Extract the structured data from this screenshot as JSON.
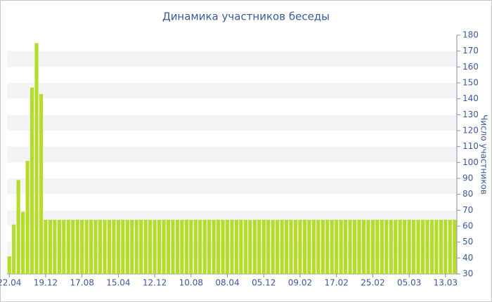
{
  "chart_data": {
    "type": "bar",
    "title": "Динамика участников беседы",
    "y_axis_label": "Число участников",
    "categories": [
      "22.04",
      null,
      null,
      null,
      null,
      null,
      null,
      null,
      "19.12",
      null,
      null,
      null,
      null,
      null,
      null,
      null,
      "17.08",
      null,
      null,
      null,
      null,
      null,
      null,
      null,
      "15.04",
      null,
      null,
      null,
      null,
      null,
      null,
      null,
      "12.12",
      null,
      null,
      null,
      null,
      null,
      null,
      null,
      "10.08",
      null,
      null,
      null,
      null,
      null,
      null,
      null,
      "08.04",
      null,
      null,
      null,
      null,
      null,
      null,
      null,
      "05.12",
      null,
      null,
      null,
      null,
      null,
      null,
      null,
      "09.02",
      null,
      null,
      null,
      null,
      null,
      null,
      null,
      "17.02",
      null,
      null,
      null,
      null,
      null,
      null,
      null,
      "25.02",
      null,
      null,
      null,
      null,
      null,
      null,
      null,
      "05.03",
      null,
      null,
      null,
      null,
      null,
      null,
      null,
      "13.03",
      null,
      null
    ],
    "values": [
      41,
      61,
      89,
      69,
      101,
      147,
      175,
      143,
      64,
      64,
      64,
      64,
      64,
      64,
      64,
      64,
      64,
      64,
      64,
      64,
      64,
      64,
      64,
      64,
      64,
      64,
      64,
      64,
      64,
      64,
      64,
      64,
      64,
      64,
      64,
      64,
      64,
      64,
      64,
      64,
      64,
      64,
      64,
      64,
      64,
      64,
      64,
      64,
      64,
      64,
      64,
      64,
      64,
      64,
      64,
      64,
      64,
      64,
      64,
      64,
      64,
      64,
      64,
      64,
      64,
      64,
      64,
      64,
      64,
      64,
      64,
      64,
      64,
      64,
      64,
      64,
      64,
      64,
      64,
      64,
      64,
      64,
      64,
      64,
      64,
      64,
      64,
      64,
      64,
      64,
      64,
      64,
      64,
      64,
      64,
      64,
      64,
      64,
      64
    ],
    "color": "#b5dc2b",
    "ylim": [
      30,
      180
    ],
    "yticks": [
      30,
      40,
      50,
      60,
      70,
      80,
      90,
      100,
      110,
      120,
      130,
      140,
      150,
      160,
      170,
      180
    ],
    "grid": true,
    "y_axis_side": "right"
  }
}
